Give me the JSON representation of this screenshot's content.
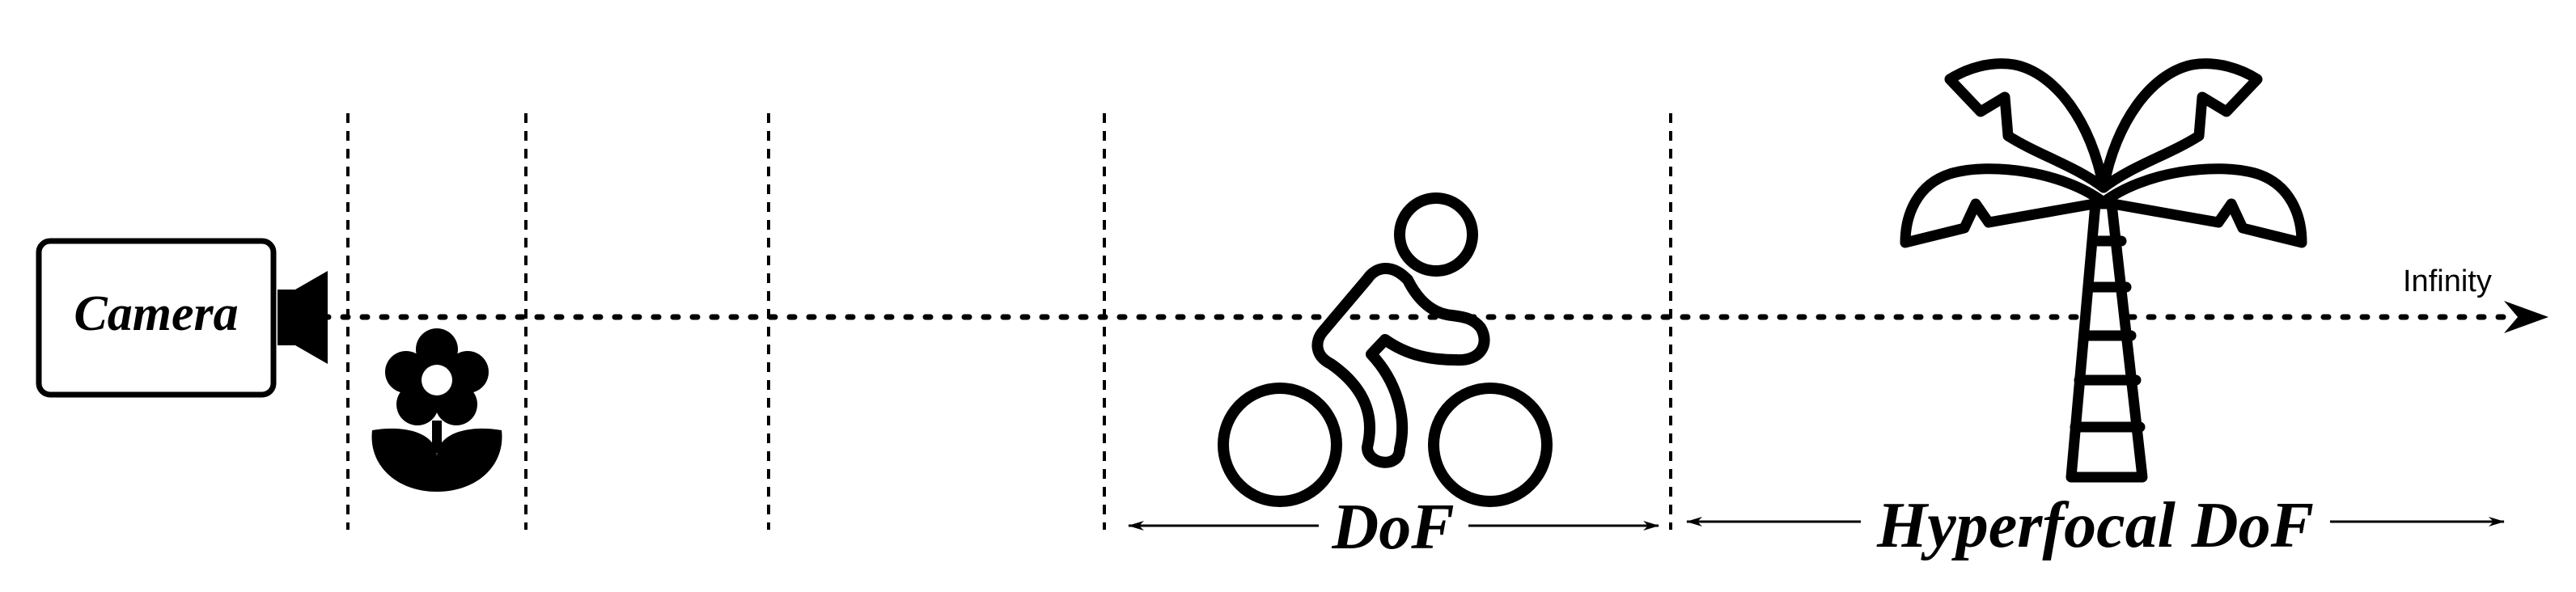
{
  "diagram": {
    "camera_label": "Camera",
    "infinity_label": "Infinity",
    "dof_label": "DoF",
    "hyperfocal_label": "Hyperfocal DoF",
    "icons": [
      "camera-lens-icon",
      "flower-icon",
      "cyclist-icon",
      "palm-tree-icon"
    ],
    "stroke_color": "#000000",
    "background_color": "#ffffff"
  }
}
